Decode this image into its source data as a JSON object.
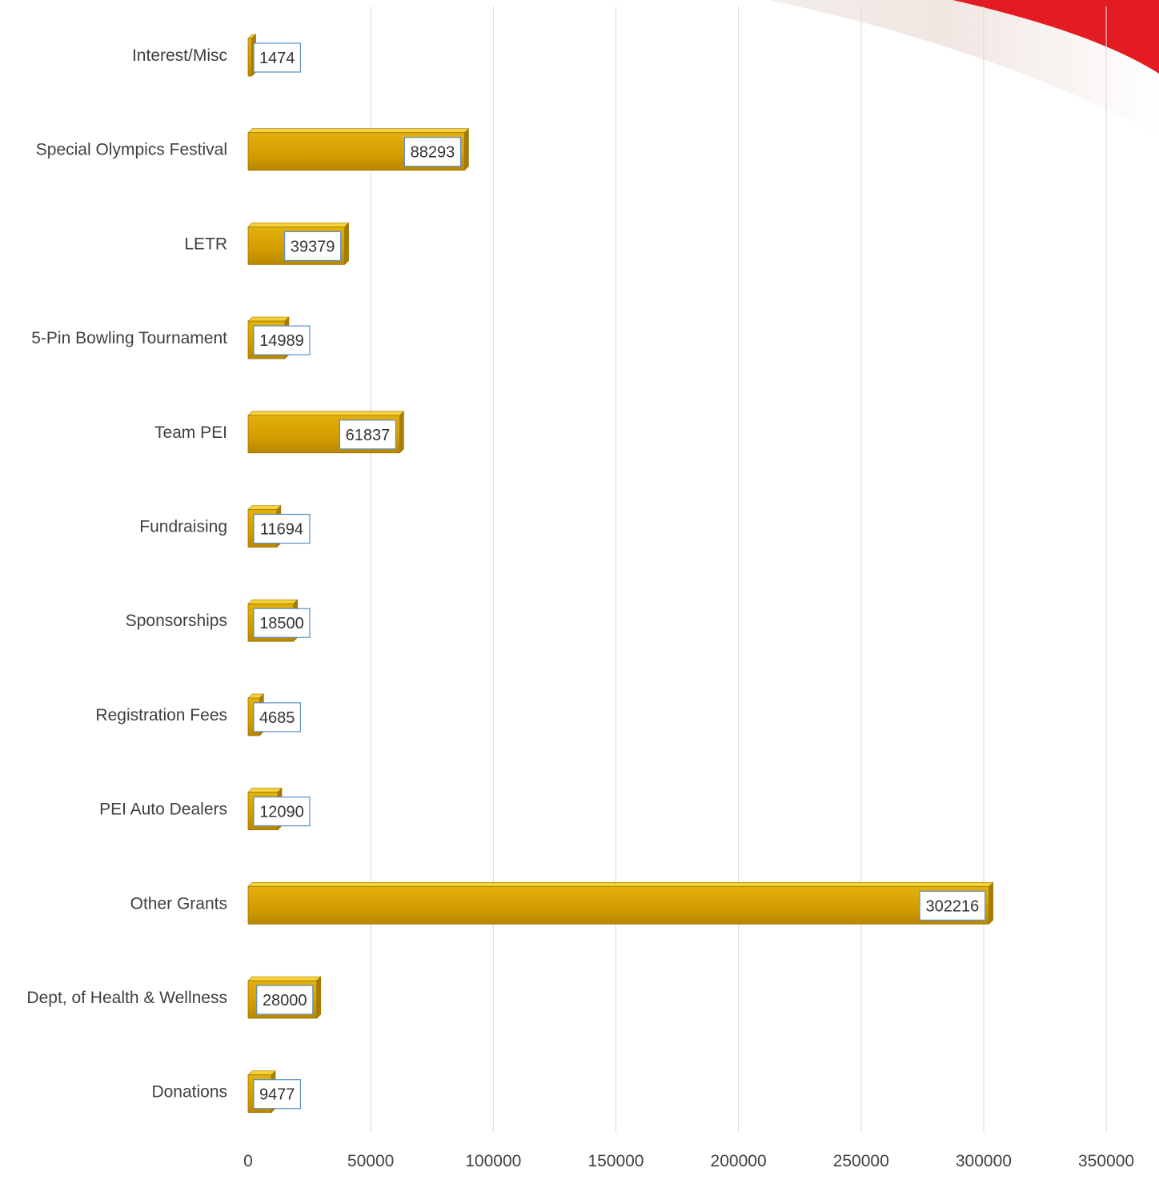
{
  "chart_data": {
    "type": "bar",
    "orientation": "horizontal",
    "title": "",
    "xlabel": "",
    "ylabel": "",
    "categories": [
      "Interest/Misc",
      "Special Olympics Festival",
      "LETR",
      "5-Pin Bowling Tournament",
      "Team PEI",
      "Fundraising",
      "Sponsorships",
      "Registration Fees",
      "PEI Auto Dealers",
      "Other Grants",
      "Dept, of Health & Wellness",
      "Donations"
    ],
    "values": [
      1474,
      88293,
      39379,
      14989,
      61837,
      11694,
      18500,
      4685,
      12090,
      302216,
      28000,
      9477
    ],
    "data_labels": [
      "1474",
      "88293",
      "39379",
      "14989",
      "61837",
      "11694",
      "18500",
      "4685",
      "12090",
      "302216",
      "28000",
      "9477"
    ],
    "xlim": [
      0,
      350000
    ],
    "x_ticks": [
      0,
      50000,
      100000,
      150000,
      200000,
      250000,
      300000,
      350000
    ],
    "x_tick_labels": [
      "0",
      "50000",
      "100000",
      "150000",
      "200000",
      "250000",
      "300000",
      "350000"
    ],
    "grid": "vertical",
    "legend": "none",
    "colors": {
      "bar_main": "#D9A300",
      "bar_top": "#F6D23A",
      "bar_edge": "#9C7400",
      "label_border": "#5B8FC9",
      "grid": "#D9D9D9",
      "text": "#404040",
      "corner_swoosh": "#E31B23"
    }
  }
}
